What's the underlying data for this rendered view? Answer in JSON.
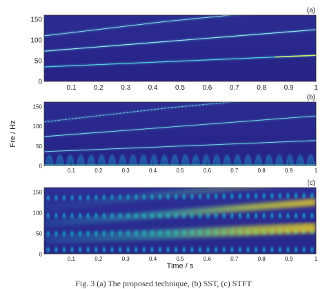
{
  "caption": "Fig. 3 (a) The proposed technique, (b) SST, (c) STFT",
  "colors": {
    "background": "#2a2a8c",
    "background_dark": "#221f7a",
    "ridge": "#4fd3e0",
    "ridge_bright": "#f0e020",
    "stft_blob": "#1aa0c8",
    "stft_band": "#f5d41c"
  },
  "chart_data": [
    {
      "type": "heatmap",
      "panel_label": "(a)",
      "xlim": [
        0,
        1
      ],
      "ylim": [
        0,
        160
      ],
      "xticks": [
        0.1,
        0.2,
        0.3,
        0.4,
        0.5,
        0.6,
        0.7,
        0.8,
        0.9,
        1
      ],
      "yticks": [
        0,
        50,
        100,
        150
      ],
      "ridges": [
        {
          "x": [
            0,
            1
          ],
          "y": [
            35,
            63
          ]
        },
        {
          "x": [
            0,
            1
          ],
          "y": [
            73,
            125
          ]
        },
        {
          "x": [
            0,
            0.45,
            1
          ],
          "y": [
            110,
            145,
            180
          ]
        }
      ]
    },
    {
      "type": "heatmap",
      "panel_label": "(b)",
      "ylabel": "Fre / Hz",
      "xlim": [
        0,
        1
      ],
      "ylim": [
        0,
        160
      ],
      "xticks": [
        0.1,
        0.2,
        0.3,
        0.4,
        0.5,
        0.6,
        0.7,
        0.8,
        0.9,
        1
      ],
      "yticks": [
        0,
        50,
        100,
        150
      ],
      "ridges": [
        {
          "x": [
            0,
            1
          ],
          "y": [
            35,
            63
          ]
        },
        {
          "x": [
            0,
            1
          ],
          "y": [
            73,
            125
          ]
        },
        {
          "x": [
            0,
            0.45,
            1
          ],
          "y": [
            110,
            145,
            180
          ]
        }
      ]
    },
    {
      "type": "heatmap",
      "panel_label": "(c)",
      "xlabel": "Time / s",
      "xlim": [
        0,
        1
      ],
      "ylim": [
        0,
        160
      ],
      "xticks": [
        0.1,
        0.2,
        0.3,
        0.4,
        0.5,
        0.6,
        0.7,
        0.8,
        0.9,
        1
      ],
      "yticks": [
        0,
        50,
        100,
        150
      ],
      "ridges": [
        {
          "x": [
            0,
            1
          ],
          "y": [
            35,
            63
          ]
        },
        {
          "x": [
            0,
            1
          ],
          "y": [
            73,
            125
          ]
        },
        {
          "x": [
            0,
            0.45,
            1
          ],
          "y": [
            110,
            145,
            180
          ]
        }
      ]
    }
  ]
}
